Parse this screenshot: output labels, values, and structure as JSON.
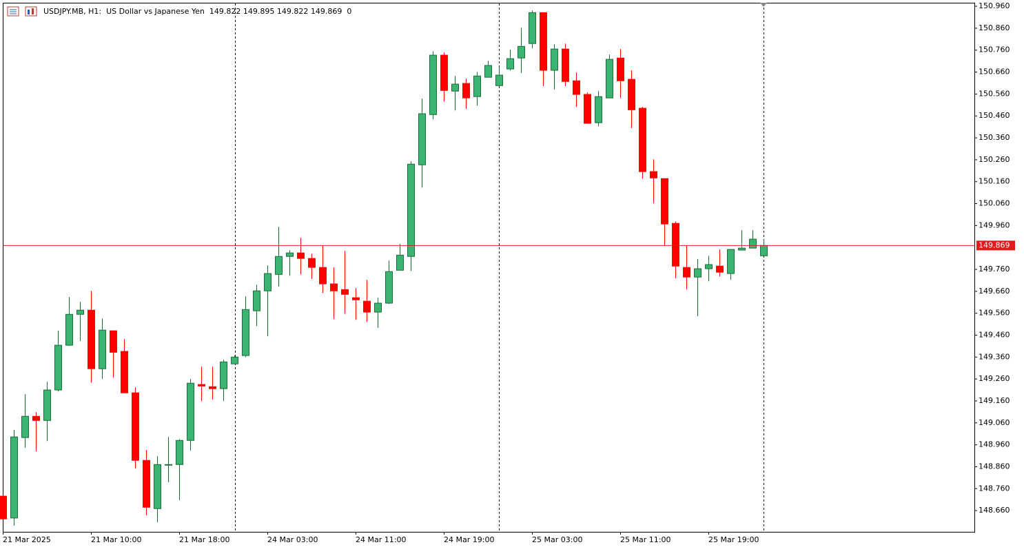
{
  "chart_data": {
    "type": "candlestick",
    "title": "USDJPY.MB, H1:  US Dollar vs Japanese Yen  149.822 149.895 149.822 149.869  0",
    "categories": [
      "21 Mar 2025",
      null,
      null,
      null,
      null,
      null,
      null,
      null,
      "21 Mar 10:00",
      null,
      null,
      null,
      null,
      null,
      null,
      null,
      "21 Mar 18:00",
      null,
      null,
      null,
      null,
      null,
      null,
      null,
      "24 Mar 03:00",
      null,
      null,
      null,
      null,
      null,
      null,
      null,
      "24 Mar 11:00",
      null,
      null,
      null,
      null,
      null,
      null,
      null,
      "24 Mar 19:00",
      null,
      null,
      null,
      null,
      null,
      null,
      null,
      "25 Mar 03:00",
      null,
      null,
      null,
      null,
      null,
      null,
      null,
      "25 Mar 11:00",
      null,
      null,
      null,
      null,
      null,
      null,
      null,
      "25 Mar 19:00",
      null,
      null,
      null,
      null,
      null
    ],
    "open": [
      148.726,
      148.626,
      148.993,
      149.09,
      149.071,
      149.21,
      149.414,
      149.555,
      149.574,
      149.307,
      149.48,
      149.386,
      149.197,
      148.889,
      148.669,
      148.867,
      148.87,
      148.98,
      149.235,
      149.225,
      149.216,
      149.329,
      149.367,
      149.571,
      149.662,
      149.737,
      149.819,
      149.835,
      149.81,
      149.769,
      149.694,
      149.668,
      149.631,
      149.615,
      149.565,
      149.606,
      149.756,
      149.819,
      150.237,
      150.466,
      150.737,
      150.573,
      150.608,
      150.548,
      150.636,
      150.598,
      150.674,
      150.724,
      150.79,
      150.931,
      150.668,
      150.765,
      150.62,
      150.558,
      150.429,
      150.542,
      150.724,
      150.627,
      150.495,
      150.206,
      150.174,
      149.97,
      149.769,
      149.725,
      149.763,
      149.775,
      149.741,
      149.848,
      149.857,
      149.822
    ],
    "high": [
      148.726,
      149.028,
      149.191,
      149.109,
      149.247,
      149.48,
      149.634,
      149.612,
      149.662,
      149.536,
      149.48,
      149.442,
      149.222,
      148.936,
      148.908,
      148.996,
      148.986,
      149.26,
      149.316,
      149.316,
      149.348,
      149.367,
      149.637,
      149.69,
      149.778,
      149.954,
      149.848,
      149.904,
      149.832,
      149.869,
      149.769,
      149.844,
      149.675,
      149.712,
      149.631,
      149.8,
      149.876,
      150.253,
      150.539,
      150.755,
      150.749,
      150.642,
      150.63,
      150.661,
      150.711,
      150.683,
      150.762,
      150.862,
      150.941,
      150.931,
      150.787,
      150.79,
      150.658,
      150.567,
      150.573,
      150.74,
      150.765,
      150.668,
      150.501,
      150.262,
      150.174,
      149.979,
      149.869,
      149.807,
      149.822,
      149.851,
      149.851,
      149.939,
      149.939,
      149.895
    ],
    "low": [
      148.622,
      148.591,
      148.946,
      148.93,
      148.977,
      149.203,
      149.411,
      149.433,
      149.244,
      149.26,
      149.266,
      149.197,
      148.852,
      148.638,
      148.606,
      148.789,
      148.707,
      148.933,
      149.159,
      149.166,
      149.159,
      149.329,
      149.36,
      149.502,
      149.455,
      149.681,
      149.731,
      149.737,
      149.716,
      149.653,
      149.533,
      149.558,
      149.53,
      149.521,
      149.493,
      149.602,
      149.756,
      149.753,
      150.133,
      150.444,
      150.526,
      150.485,
      150.492,
      150.507,
      150.636,
      150.595,
      150.667,
      150.655,
      150.768,
      150.595,
      150.58,
      150.595,
      150.501,
      150.426,
      150.413,
      150.542,
      150.542,
      150.404,
      150.174,
      150.061,
      149.866,
      149.719,
      149.668,
      149.546,
      149.706,
      149.728,
      149.712,
      149.848,
      149.857,
      149.822
    ],
    "close": [
      148.622,
      148.996,
      149.09,
      149.071,
      149.21,
      149.414,
      149.555,
      149.574,
      149.307,
      149.483,
      149.382,
      149.197,
      148.889,
      148.675,
      148.87,
      148.87,
      148.98,
      149.241,
      149.228,
      149.216,
      149.338,
      149.36,
      149.577,
      149.662,
      149.741,
      149.819,
      149.835,
      149.81,
      149.769,
      149.694,
      149.662,
      149.646,
      149.621,
      149.565,
      149.606,
      149.75,
      149.825,
      150.24,
      150.47,
      150.737,
      150.576,
      150.605,
      150.542,
      150.642,
      150.69,
      150.646,
      150.721,
      150.777,
      150.931,
      150.668,
      150.765,
      150.617,
      150.558,
      150.426,
      150.548,
      150.718,
      150.62,
      150.488,
      150.206,
      150.177,
      149.967,
      149.775,
      149.725,
      149.763,
      149.782,
      149.747,
      149.851,
      149.857,
      149.898,
      149.869
    ],
    "up_color": "#3cb371",
    "up_border": "#1b6e3a",
    "down_color": "#ff0000",
    "last_price": 149.869,
    "last_price_color": "#e31a1c",
    "ylim": [
      148.563,
      150.976
    ],
    "yticks": [
      {
        "value": 150.96,
        "label": "150.960"
      },
      {
        "value": 150.86,
        "label": "150.860"
      },
      {
        "value": 150.76,
        "label": "150.760"
      },
      {
        "value": 150.66,
        "label": "150.660"
      },
      {
        "value": 150.56,
        "label": "150.560"
      },
      {
        "value": 150.46,
        "label": "150.460"
      },
      {
        "value": 150.36,
        "label": "150.360"
      },
      {
        "value": 150.26,
        "label": "150.260"
      },
      {
        "value": 150.16,
        "label": "150.160"
      },
      {
        "value": 150.06,
        "label": "150.060"
      },
      {
        "value": 149.96,
        "label": "149.960"
      },
      {
        "value": 149.76,
        "label": "149.760"
      },
      {
        "value": 149.66,
        "label": "149.660"
      },
      {
        "value": 149.56,
        "label": "149.560"
      },
      {
        "value": 149.46,
        "label": "149.460"
      },
      {
        "value": 149.36,
        "label": "149.360"
      },
      {
        "value": 149.26,
        "label": "149.260"
      },
      {
        "value": 149.16,
        "label": "149.160"
      },
      {
        "value": 149.06,
        "label": "149.060"
      },
      {
        "value": 148.96,
        "label": "148.960"
      },
      {
        "value": 148.86,
        "label": "148.860"
      },
      {
        "value": 148.76,
        "label": "148.760"
      },
      {
        "value": 148.66,
        "label": "148.660"
      }
    ],
    "grid": false
  }
}
